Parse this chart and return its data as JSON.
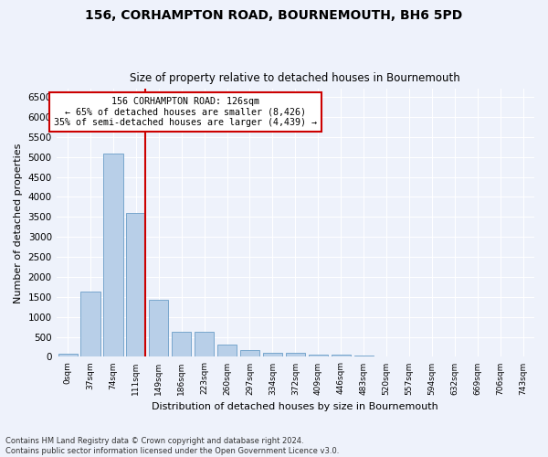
{
  "title1": "156, CORHAMPTON ROAD, BOURNEMOUTH, BH6 5PD",
  "title2": "Size of property relative to detached houses in Bournemouth",
  "xlabel": "Distribution of detached houses by size in Bournemouth",
  "ylabel": "Number of detached properties",
  "bar_labels": [
    "0sqm",
    "37sqm",
    "74sqm",
    "111sqm",
    "149sqm",
    "186sqm",
    "223sqm",
    "260sqm",
    "297sqm",
    "334sqm",
    "372sqm",
    "409sqm",
    "446sqm",
    "483sqm",
    "520sqm",
    "557sqm",
    "594sqm",
    "632sqm",
    "669sqm",
    "706sqm",
    "743sqm"
  ],
  "bar_values": [
    75,
    1640,
    5080,
    3590,
    1420,
    620,
    620,
    310,
    165,
    110,
    90,
    65,
    60,
    40,
    0,
    0,
    0,
    0,
    0,
    0,
    0
  ],
  "bar_color": "#b8cfe8",
  "bar_edge_color": "#6a9ec8",
  "vline_x": 3.4,
  "vline_color": "#cc0000",
  "annotation_title": "156 CORHAMPTON ROAD: 126sqm",
  "annotation_line2": "← 65% of detached houses are smaller (8,426)",
  "annotation_line3": "35% of semi-detached houses are larger (4,439) →",
  "annotation_box_color": "#cc0000",
  "ylim": [
    0,
    6700
  ],
  "yticks": [
    0,
    500,
    1000,
    1500,
    2000,
    2500,
    3000,
    3500,
    4000,
    4500,
    5000,
    5500,
    6000,
    6500
  ],
  "footnote1": "Contains HM Land Registry data © Crown copyright and database right 2024.",
  "footnote2": "Contains public sector information licensed under the Open Government Licence v3.0.",
  "background_color": "#eef2fb",
  "grid_color": "#ffffff"
}
